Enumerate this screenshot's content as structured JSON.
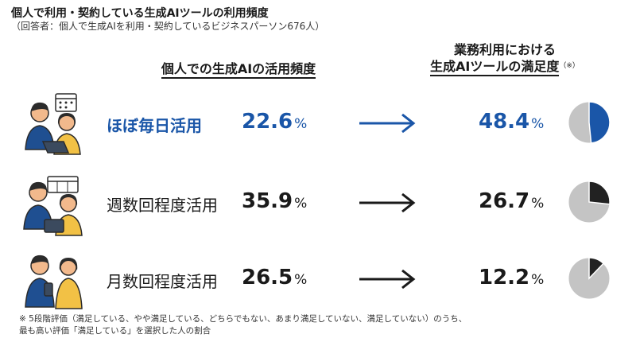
{
  "header": {
    "title": "個人で利用・契約している生成AIツールの利用頻度",
    "subtitle": "（回答者：個人で生成AIを利用・契約しているビジネスパーソン676人）"
  },
  "columns": {
    "left_heading": "個人での生成AIの活用頻度",
    "right_heading_line1": "業務利用における",
    "right_heading_line2": "生成AIツールの満足度",
    "right_heading_mark": "（※）"
  },
  "rows": [
    {
      "label": "ほぼ毎日活用",
      "usage": "22.6",
      "satisfaction": "48.4",
      "unit": "%"
    },
    {
      "label": "週数回程度活用",
      "usage": "35.9",
      "satisfaction": "26.7",
      "unit": "%"
    },
    {
      "label": "月数回程度活用",
      "usage": "26.5",
      "satisfaction": "12.2",
      "unit": "%"
    }
  ],
  "chart_data": {
    "type": "pie",
    "categories": [
      "ほぼ毎日活用",
      "週数回程度活用",
      "月数回程度活用"
    ],
    "usage_share_percent": [
      22.6,
      35.9,
      26.5
    ],
    "satisfaction_percent": [
      48.4,
      26.7,
      12.2
    ]
  },
  "footnote": {
    "line1": "※ 5段階評価（満足している、やや満足している、どちらでもない、あまり満足していない、満足していない）のうち、",
    "line2": "最も高い評価「満足している」を選択した人の割合"
  },
  "colors": {
    "highlight": "#1a56a8",
    "pie_dark": "#222222",
    "pie_grey": "#c4c4c4",
    "text": "#1a1a1a"
  }
}
